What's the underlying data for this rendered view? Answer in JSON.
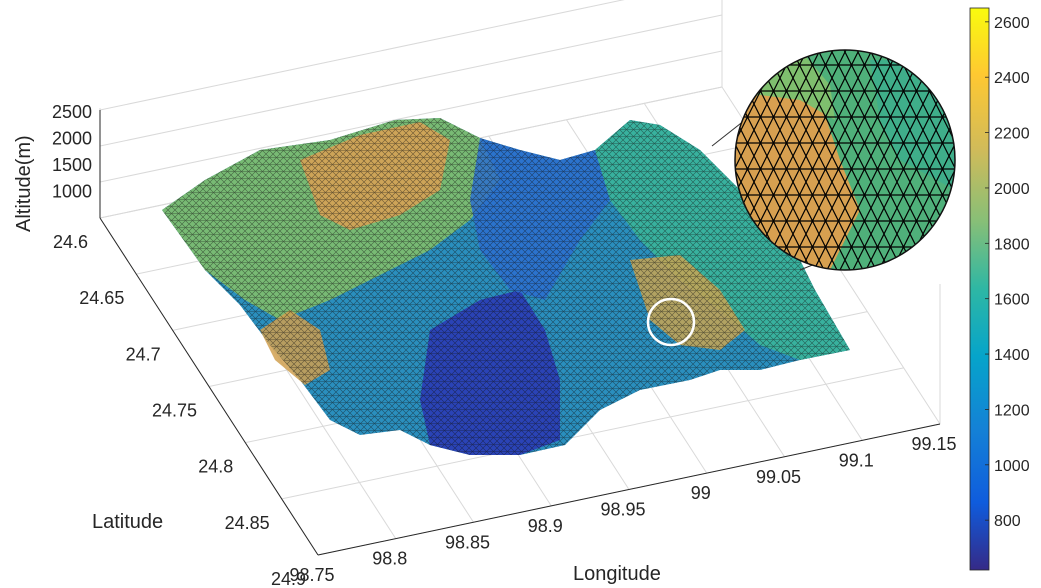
{
  "chart_data": {
    "type": "surface",
    "title": "",
    "xlabel": "Longitude",
    "ylabel": "Latitude",
    "zlabel": "Altitude(m)",
    "x_ticks": [
      "98.75",
      "98.8",
      "98.85",
      "98.9",
      "98.95",
      "99",
      "99.05",
      "99.1",
      "99.15"
    ],
    "y_ticks": [
      "24.6",
      "24.65",
      "24.7",
      "24.75",
      "24.8",
      "24.85",
      "24.9"
    ],
    "z_ticks": [
      "1000",
      "1500",
      "2000",
      "2500"
    ],
    "xlim": [
      98.75,
      99.15
    ],
    "ylim": [
      24.6,
      24.9
    ],
    "zlim": [
      500,
      2500
    ],
    "colorbar": {
      "ticks": [
        "800",
        "1000",
        "1200",
        "1400",
        "1600",
        "1800",
        "2000",
        "2200",
        "2400",
        "2600"
      ],
      "range": [
        620,
        2650
      ],
      "colormap": "parula"
    },
    "mesh": "triangulated",
    "grid": true,
    "annotations": [
      "circled region near (99.0, 24.7) shown magnified in inset"
    ]
  }
}
